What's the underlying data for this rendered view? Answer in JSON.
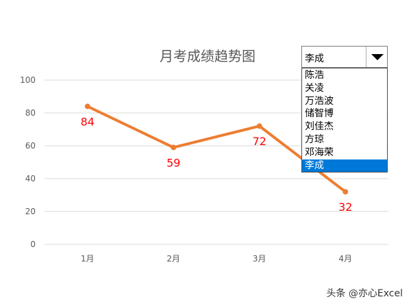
{
  "chart_data": {
    "type": "line",
    "title": "月考成绩趋势图",
    "categories": [
      "1月",
      "2月",
      "3月",
      "4月"
    ],
    "values": [
      84,
      59,
      72,
      32
    ],
    "data_labels": [
      "84",
      "59",
      "72",
      "32"
    ],
    "y_ticks": [
      "0",
      "20",
      "40",
      "60",
      "80",
      "100"
    ],
    "ylim": [
      0,
      100
    ],
    "grid": true,
    "legend": "none",
    "line_color": "#ed7d31",
    "label_color": "#ff0000"
  },
  "selector": {
    "selected": "李成",
    "options": [
      "陈浩",
      "关凌",
      "万浩波",
      "储智博",
      "刘佳杰",
      "方琼",
      "邓海荣",
      "李成"
    ],
    "highlight_color": "#0078d7"
  },
  "watermark": "头条 @亦心Excel",
  "icons": {
    "dropdown": "chevron-down-icon"
  }
}
